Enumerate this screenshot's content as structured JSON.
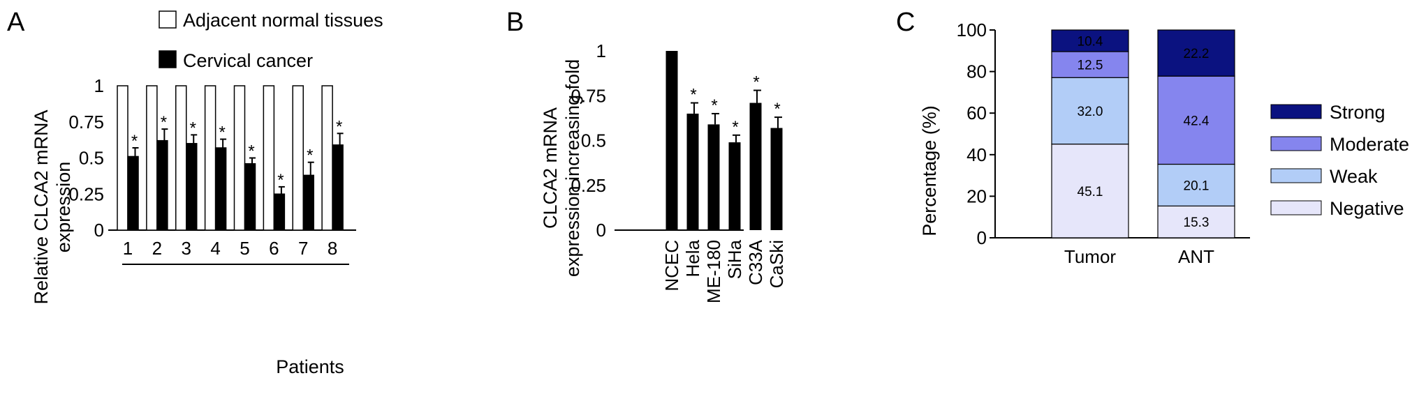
{
  "panels": {
    "A": {
      "letter": "A"
    },
    "B": {
      "letter": "B"
    },
    "C": {
      "letter": "C"
    }
  },
  "colors": {
    "strong": "#0b1280",
    "moderate": "#8585ee",
    "weak": "#b2cdf7",
    "negative": "#e6e6fa",
    "bar_black": "#000000",
    "bar_white": "#ffffff"
  },
  "chart_data": [
    {
      "type": "bar",
      "panel": "A",
      "categories": [
        "1",
        "2",
        "3",
        "4",
        "5",
        "6",
        "7",
        "8"
      ],
      "series": [
        {
          "name": "Adjacent normal tissues",
          "values": [
            1,
            1,
            1,
            1,
            1,
            1,
            1,
            1
          ],
          "color": "#ffffff"
        },
        {
          "name": "Cervical cancer",
          "values": [
            0.51,
            0.62,
            0.6,
            0.57,
            0.46,
            0.25,
            0.38,
            0.59
          ],
          "errors": [
            0.06,
            0.08,
            0.06,
            0.06,
            0.04,
            0.05,
            0.09,
            0.08
          ],
          "color": "#000000"
        }
      ],
      "significance": [
        "*",
        "*",
        "*",
        "*",
        "*",
        "*",
        "*",
        "*"
      ],
      "xlabel": "Patients",
      "ylabel": [
        "Relative CLCA2 mRNA",
        "expression"
      ],
      "ylim": [
        0,
        1
      ],
      "yticks": [
        "0",
        "0.25",
        "0.5",
        "0.75",
        "1"
      ],
      "legend_placement": "top"
    },
    {
      "type": "bar",
      "panel": "B",
      "categories": [
        "NCEC",
        "Hela",
        "ME-180",
        "SiHa",
        "C33A",
        "CaSki"
      ],
      "values": [
        1.0,
        0.65,
        0.59,
        0.49,
        0.71,
        0.57
      ],
      "errors": [
        0,
        0.06,
        0.06,
        0.04,
        0.07,
        0.06
      ],
      "significance": [
        "",
        "*",
        "*",
        "*",
        "*",
        "*"
      ],
      "ylabel": [
        "CLCA2 mRNA",
        "expression increasing fold"
      ],
      "ylim": [
        0,
        1
      ],
      "yticks": [
        "0",
        "0.25",
        "0.5",
        "0.75",
        "1"
      ]
    },
    {
      "type": "bar",
      "stacked": true,
      "panel": "C",
      "categories": [
        "Tumor",
        "ANT"
      ],
      "series": [
        {
          "name": "Negative",
          "values": [
            45.1,
            15.3
          ],
          "labels": [
            "45.1",
            "15.3"
          ]
        },
        {
          "name": "Weak",
          "values": [
            32.0,
            20.1
          ],
          "labels": [
            "32.0",
            "20.1"
          ]
        },
        {
          "name": "Moderate",
          "values": [
            12.5,
            42.4
          ],
          "labels": [
            "12.5",
            "42.4"
          ]
        },
        {
          "name": "Strong",
          "values": [
            10.4,
            22.2
          ],
          "labels": [
            "10.4",
            "22.2"
          ]
        }
      ],
      "legend": [
        "Strong",
        "Moderate",
        "Weak",
        "Negative"
      ],
      "ylabel": "Percentage (%)",
      "ylim": [
        0,
        100
      ],
      "yticks": [
        "0",
        "20",
        "40",
        "60",
        "80",
        "100"
      ],
      "legend_placement": "right"
    }
  ]
}
